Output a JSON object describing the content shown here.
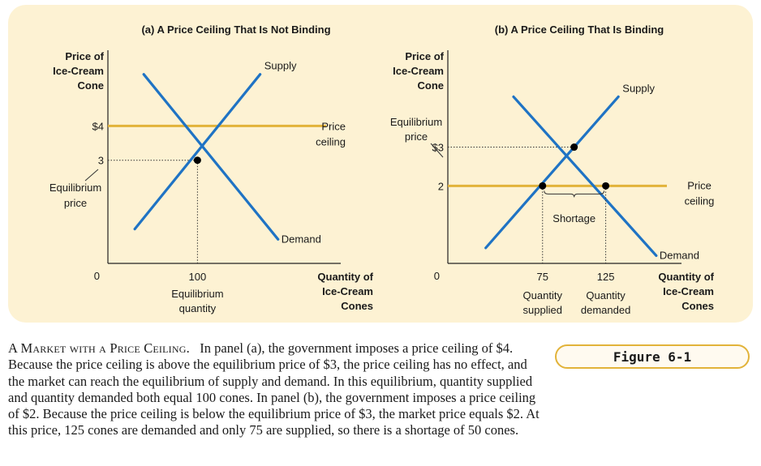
{
  "colors": {
    "background": "#fdf2d3",
    "curve": "#1f73c4",
    "ceiling": "#e2b33a",
    "equilibrium": "#000000"
  },
  "chart_data": [
    {
      "type": "line",
      "title": "(a) A Price Ceiling That Is Not Binding",
      "ylabel": [
        "Price of",
        "Ice-Cream",
        "Cone"
      ],
      "xlabel": [
        "Quantity of",
        "Ice-Cream",
        "Cones"
      ],
      "origin_label": "0",
      "ylim": [
        0,
        6.2
      ],
      "xlim": [
        0,
        260
      ],
      "y_ticks": [
        {
          "value": 4,
          "label": "$4"
        },
        {
          "value": 3,
          "label": "3"
        }
      ],
      "x_ticks": [
        {
          "value": 100,
          "label": "100"
        }
      ],
      "series": [
        {
          "name": "Supply",
          "points": [
            [
              30,
              1
            ],
            [
              170,
              5.5
            ]
          ]
        },
        {
          "name": "Demand",
          "points": [
            [
              40,
              5.5
            ],
            [
              190,
              0.7
            ]
          ]
        }
      ],
      "price_ceiling": {
        "value": 4,
        "label": [
          "Price",
          "ceiling"
        ]
      },
      "equilibrium": {
        "x": 100,
        "y": 3,
        "price_label": [
          "Equilibrium",
          "price"
        ],
        "quantity_label": [
          "Equilibrium",
          "quantity"
        ]
      }
    },
    {
      "type": "line",
      "title": "(b) A Price Ceiling That Is Binding",
      "ylabel": [
        "Price of",
        "Ice-Cream",
        "Cone"
      ],
      "xlabel": [
        "Quantity of",
        "Ice-Cream",
        "Cones"
      ],
      "origin_label": "0",
      "ylim": [
        0,
        5.5
      ],
      "xlim": [
        0,
        185
      ],
      "y_ticks": [
        {
          "value": 3,
          "label": "$3"
        },
        {
          "value": 2,
          "label": "2"
        }
      ],
      "x_ticks": [
        {
          "value": 75,
          "label": "75"
        },
        {
          "value": 125,
          "label": "125"
        }
      ],
      "series": [
        {
          "name": "Supply",
          "points": [
            [
              30,
              0.4
            ],
            [
              135,
              4.3
            ]
          ]
        },
        {
          "name": "Demand",
          "points": [
            [
              52,
              4.3
            ],
            [
              165,
              0.2
            ]
          ]
        }
      ],
      "price_ceiling": {
        "value": 2,
        "label": [
          "Price",
          "ceiling"
        ]
      },
      "equilibrium": {
        "x": 100,
        "y": 3,
        "price_label": [
          "Equilibrium",
          "price"
        ]
      },
      "quantity_supplied": {
        "x": 75,
        "label": [
          "Quantity",
          "supplied"
        ]
      },
      "quantity_demanded": {
        "x": 125,
        "label": [
          "Quantity",
          "demanded"
        ]
      },
      "shortage_label": "Shortage"
    }
  ],
  "caption": {
    "title": "A Market with a Price Ceiling.",
    "body": "In panel (a), the government imposes a price ceiling of $4. Because the price ceiling is above the equilibrium price of $3, the price ceiling has no effect, and the market can reach the equilibrium of supply and demand. In this equilibrium, quantity supplied and quantity demanded both equal 100 cones. In panel (b), the government imposes a price ceiling of $2. Because the price ceiling is below the equilibrium price of $3, the market price equals $2. At this price, 125 cones are demanded and only 75 are supplied, so there is a shortage of 50 cones."
  },
  "figure_label": "Figure 6-1"
}
